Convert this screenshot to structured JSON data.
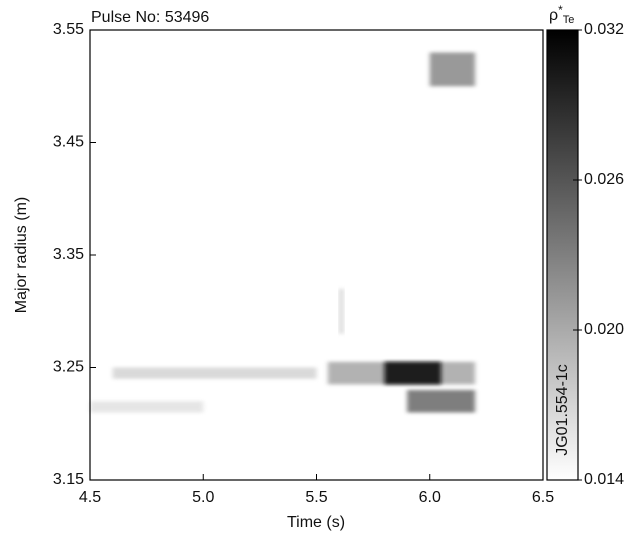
{
  "chart_data": {
    "type": "heatmap",
    "title": "Pulse No: 53496",
    "xlabel": "Time (s)",
    "ylabel": "Major radius (m)",
    "xlim": [
      4.5,
      6.5
    ],
    "xticks": [
      4.5,
      {
        "value": 5,
        "label": "5.0"
      },
      5.5,
      {
        "value": 6,
        "label": "6.0"
      },
      6.5
    ],
    "ylim": [
      3.15,
      3.55
    ],
    "yticks": [
      3.15,
      3.25,
      3.35,
      3.45,
      3.55
    ],
    "colorbar": {
      "label": {
        "base": "ρ",
        "sup": "*",
        "sub": "Te"
      },
      "lim": [
        0.014,
        0.032
      ],
      "ticks": [
        0.014,
        {
          "value": 0.02,
          "label": "0.020"
        },
        0.026,
        0.032
      ],
      "colors": [
        "#ffffff",
        "#000000"
      ],
      "note": "JG01.554-1c"
    },
    "regions": [
      {
        "x": [
          4.5,
          5.0
        ],
        "y": [
          3.21,
          3.22
        ],
        "value": 0.016
      },
      {
        "x": [
          4.6,
          5.5
        ],
        "y": [
          3.24,
          3.25
        ],
        "value": 0.017
      },
      {
        "x": [
          5.6,
          5.62
        ],
        "y": [
          3.28,
          3.32
        ],
        "value": 0.017
      },
      {
        "x": [
          5.55,
          6.2
        ],
        "y": [
          3.235,
          3.255
        ],
        "value": 0.02
      },
      {
        "x": [
          5.9,
          6.2
        ],
        "y": [
          3.21,
          3.23
        ],
        "value": 0.024
      },
      {
        "x": [
          6.0,
          6.2
        ],
        "y": [
          3.5,
          3.53
        ],
        "value": 0.022
      },
      {
        "x": [
          5.8,
          6.05
        ],
        "y": [
          3.235,
          3.255
        ],
        "value": 0.031
      }
    ]
  }
}
